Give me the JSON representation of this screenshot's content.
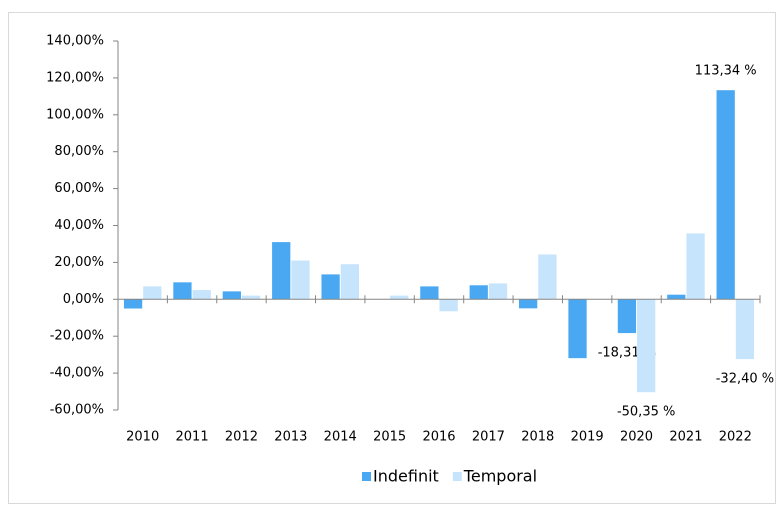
{
  "chart_data": {
    "type": "bar",
    "categories": [
      "2010",
      "2011",
      "2012",
      "2013",
      "2014",
      "2015",
      "2016",
      "2017",
      "2018",
      "2019",
      "2020",
      "2021",
      "2022"
    ],
    "series": [
      {
        "name": "Indefinit",
        "color": "#4aa8f2",
        "values": [
          -5,
          9.2,
          4.3,
          31,
          13.5,
          0,
          7,
          7.6,
          -4.9,
          -31.9,
          -18.31,
          2.5,
          113.34
        ],
        "value_labels": [
          null,
          null,
          null,
          null,
          null,
          null,
          null,
          null,
          null,
          null,
          "-18,31 %",
          null,
          "113,34 %"
        ]
      },
      {
        "name": "Temporal",
        "color": "#c6e4fb",
        "values": [
          7,
          5,
          2,
          21,
          19,
          2,
          -6.5,
          8.6,
          24.3,
          0,
          -50.35,
          35.7,
          -32.4
        ],
        "value_labels": [
          null,
          null,
          null,
          null,
          null,
          null,
          null,
          null,
          null,
          null,
          "-50,35 %",
          null,
          "-32,40 %"
        ]
      }
    ],
    "ylim": [
      -60,
      140
    ],
    "yticks": [
      {
        "value": -60,
        "label": "-60,00%"
      },
      {
        "value": -40,
        "label": "-40,00%"
      },
      {
        "value": -20,
        "label": "-20,00%"
      },
      {
        "value": 0,
        "label": "0,00%"
      },
      {
        "value": 20,
        "label": "20,00%"
      },
      {
        "value": 40,
        "label": "40,00%"
      },
      {
        "value": 60,
        "label": "60,00%"
      },
      {
        "value": 80,
        "label": "80,00%"
      },
      {
        "value": 100,
        "label": "100,00%"
      },
      {
        "value": 120,
        "label": "120,00%"
      },
      {
        "value": 140,
        "label": "140,00%"
      }
    ],
    "grid": false,
    "legend": "bottom"
  }
}
